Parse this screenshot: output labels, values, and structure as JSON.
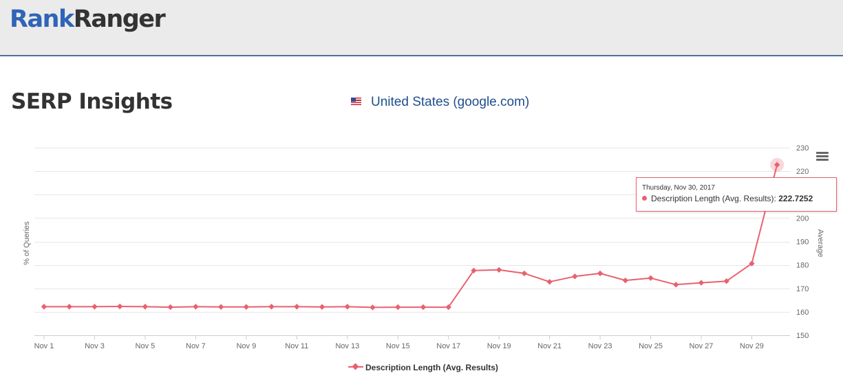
{
  "header": {
    "logo_part1": "Rank",
    "logo_part2": "Ranger"
  },
  "page": {
    "title": "SERP Insights",
    "country_label": "United States (google.com)"
  },
  "colors": {
    "series": "#e8616e",
    "brand_blue": "#2f64b8",
    "header_bg": "#ebebeb"
  },
  "chart_data": {
    "type": "line",
    "title": "",
    "xlabel": "",
    "ylabel_left": "% of Queries",
    "ylabel_right": "Average",
    "ylim": [
      150,
      230
    ],
    "y_ticks": [
      150,
      160,
      170,
      180,
      190,
      200,
      220,
      230
    ],
    "x_tick_labels": [
      "Nov 1",
      "Nov 3",
      "Nov 5",
      "Nov 7",
      "Nov 9",
      "Nov 11",
      "Nov 13",
      "Nov 15",
      "Nov 17",
      "Nov 19",
      "Nov 21",
      "Nov 23",
      "Nov 25",
      "Nov 27",
      "Nov 29"
    ],
    "grid": true,
    "legend_position": "bottom-center",
    "x": [
      "Nov 1",
      "Nov 2",
      "Nov 3",
      "Nov 4",
      "Nov 5",
      "Nov 6",
      "Nov 7",
      "Nov 8",
      "Nov 9",
      "Nov 10",
      "Nov 11",
      "Nov 12",
      "Nov 13",
      "Nov 14",
      "Nov 15",
      "Nov 16",
      "Nov 17",
      "Nov 18",
      "Nov 19",
      "Nov 20",
      "Nov 21",
      "Nov 22",
      "Nov 23",
      "Nov 24",
      "Nov 25",
      "Nov 26",
      "Nov 27",
      "Nov 28",
      "Nov 29",
      "Nov 30"
    ],
    "series": [
      {
        "name": "Description Length (Avg. Results)",
        "values": [
          162.2,
          162.2,
          162.2,
          162.3,
          162.2,
          162.0,
          162.2,
          162.1,
          162.1,
          162.2,
          162.2,
          162.1,
          162.2,
          161.9,
          162.0,
          162.0,
          162.0,
          177.6,
          177.9,
          176.4,
          172.8,
          175.1,
          176.4,
          173.4,
          174.4,
          171.6,
          172.4,
          173.1,
          180.6,
          222.7252
        ]
      }
    ],
    "tooltip": {
      "date": "Thursday, Nov 30, 2017",
      "series_label": "Description Length (Avg. Results):",
      "value": "222.7252"
    }
  }
}
